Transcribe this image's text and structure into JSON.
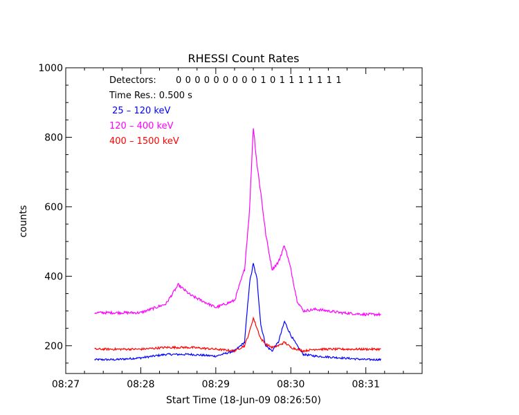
{
  "chart_data": {
    "type": "line",
    "title": "RHESSI Count Rates",
    "xlabel": "Start Time (18-Jun-09 08:26:50)",
    "ylabel": "counts",
    "x_unit": "time",
    "xlim": [
      "08:27:00",
      "08:31:45"
    ],
    "ylim": [
      120,
      1000
    ],
    "x_ticks": [
      "08:27",
      "08:28",
      "08:29",
      "08:30",
      "08:31"
    ],
    "y_ticks": [
      200,
      400,
      600,
      800,
      1000
    ],
    "grid": false,
    "annotations": {
      "detectors_label": "Detectors:",
      "detectors_value": "0 0 0 0 0 0 0 0 0 1 0 1 1 1 1 1 1 1",
      "time_res": "Time Res.: 0.500 s"
    },
    "series": [
      {
        "name": " 25 – 120 keV",
        "color": "#0000ff",
        "x": [
          "08:27:23",
          "08:27:40",
          "08:28:00",
          "08:28:20",
          "08:28:40",
          "08:29:00",
          "08:29:15",
          "08:29:23",
          "08:29:27",
          "08:29:30",
          "08:29:33",
          "08:29:36",
          "08:29:40",
          "08:29:45",
          "08:29:50",
          "08:29:55",
          "08:30:00",
          "08:30:05",
          "08:30:10",
          "08:30:20",
          "08:30:40",
          "08:31:00",
          "08:31:12"
        ],
        "values": [
          160,
          160,
          165,
          175,
          175,
          170,
          185,
          210,
          380,
          435,
          390,
          260,
          200,
          185,
          210,
          270,
          230,
          200,
          175,
          170,
          165,
          160,
          160
        ]
      },
      {
        "name": "120 – 400 keV",
        "color": "#ff00ff",
        "x": [
          "08:27:23",
          "08:27:40",
          "08:28:00",
          "08:28:20",
          "08:28:30",
          "08:28:40",
          "08:29:00",
          "08:29:15",
          "08:29:23",
          "08:29:27",
          "08:29:30",
          "08:29:33",
          "08:29:36",
          "08:29:40",
          "08:29:45",
          "08:29:50",
          "08:29:55",
          "08:30:00",
          "08:30:05",
          "08:30:10",
          "08:30:20",
          "08:30:40",
          "08:31:00",
          "08:31:12"
        ],
        "values": [
          295,
          295,
          295,
          320,
          375,
          345,
          310,
          330,
          420,
          590,
          830,
          720,
          640,
          520,
          420,
          440,
          490,
          420,
          330,
          300,
          305,
          295,
          290,
          290
        ]
      },
      {
        "name": "400 – 1500 keV",
        "color": "#ff0000",
        "x": [
          "08:27:23",
          "08:27:40",
          "08:28:00",
          "08:28:20",
          "08:28:40",
          "08:29:00",
          "08:29:15",
          "08:29:23",
          "08:29:27",
          "08:29:30",
          "08:29:33",
          "08:29:36",
          "08:29:40",
          "08:29:45",
          "08:29:50",
          "08:29:55",
          "08:30:00",
          "08:30:05",
          "08:30:10",
          "08:30:20",
          "08:30:40",
          "08:31:00",
          "08:31:12"
        ],
        "values": [
          190,
          190,
          190,
          195,
          195,
          190,
          185,
          200,
          240,
          280,
          250,
          220,
          205,
          195,
          200,
          210,
          195,
          190,
          185,
          190,
          190,
          190,
          190
        ]
      }
    ]
  }
}
